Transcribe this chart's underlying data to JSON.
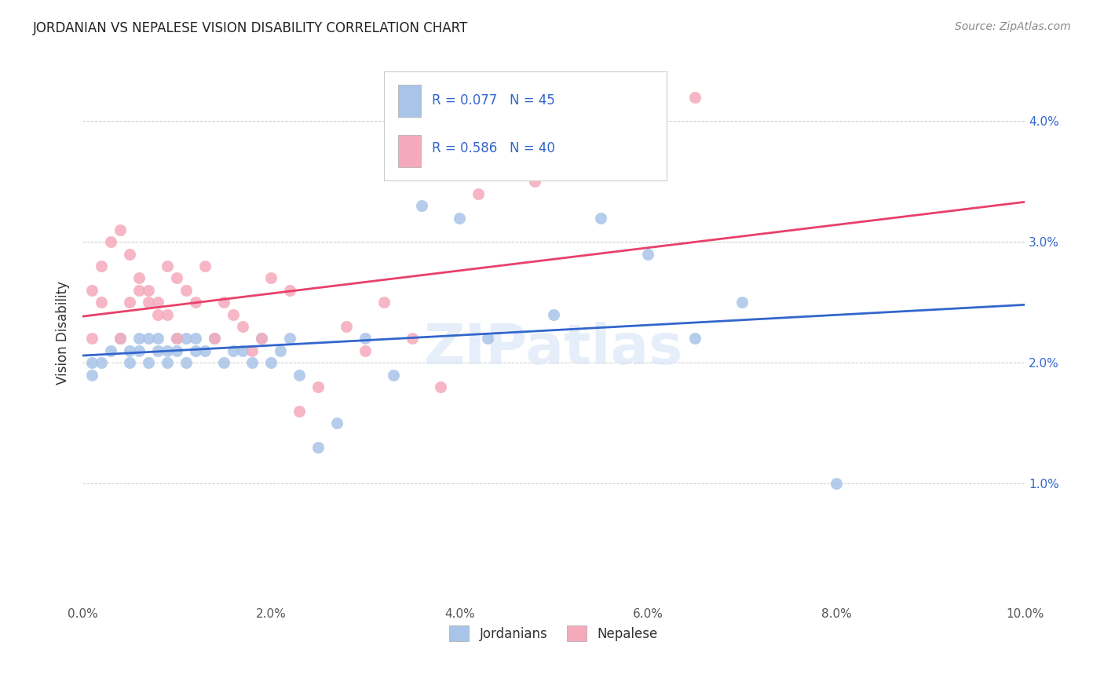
{
  "title": "JORDANIAN VS NEPALESE VISION DISABILITY CORRELATION CHART",
  "source": "Source: ZipAtlas.com",
  "ylabel": "Vision Disability",
  "xlim": [
    0.0,
    0.1
  ],
  "ylim": [
    0.0,
    0.045
  ],
  "x_ticks": [
    0.0,
    0.02,
    0.04,
    0.06,
    0.08,
    0.1
  ],
  "y_ticks": [
    0.0,
    0.01,
    0.02,
    0.03,
    0.04
  ],
  "jordanian_color": "#a8c4e8",
  "nepalese_color": "#f5aabb",
  "jordanian_line_color": "#3366cc",
  "nepalese_line_color": "#e8406a",
  "legend_R_jordanian": "R = 0.077",
  "legend_N_jordanian": "N = 45",
  "legend_R_nepalese": "R = 0.586",
  "legend_N_nepalese": "N = 40",
  "watermark": "ZIPatlas",
  "jordanian_x": [
    0.001,
    0.001,
    0.002,
    0.003,
    0.004,
    0.005,
    0.005,
    0.006,
    0.006,
    0.007,
    0.007,
    0.008,
    0.008,
    0.009,
    0.009,
    0.01,
    0.01,
    0.011,
    0.011,
    0.012,
    0.012,
    0.013,
    0.014,
    0.015,
    0.016,
    0.017,
    0.018,
    0.019,
    0.02,
    0.021,
    0.022,
    0.023,
    0.025,
    0.027,
    0.03,
    0.033,
    0.036,
    0.04,
    0.043,
    0.05,
    0.055,
    0.06,
    0.065,
    0.07,
    0.08
  ],
  "jordanian_y": [
    0.02,
    0.019,
    0.02,
    0.021,
    0.022,
    0.021,
    0.02,
    0.022,
    0.021,
    0.022,
    0.02,
    0.021,
    0.022,
    0.021,
    0.02,
    0.022,
    0.021,
    0.022,
    0.02,
    0.021,
    0.022,
    0.021,
    0.022,
    0.02,
    0.021,
    0.021,
    0.02,
    0.022,
    0.02,
    0.021,
    0.022,
    0.019,
    0.013,
    0.015,
    0.022,
    0.019,
    0.033,
    0.032,
    0.022,
    0.024,
    0.032,
    0.029,
    0.022,
    0.025,
    0.01
  ],
  "nepalese_x": [
    0.001,
    0.001,
    0.002,
    0.002,
    0.003,
    0.004,
    0.004,
    0.005,
    0.005,
    0.006,
    0.006,
    0.007,
    0.007,
    0.008,
    0.008,
    0.009,
    0.009,
    0.01,
    0.01,
    0.011,
    0.012,
    0.013,
    0.014,
    0.015,
    0.016,
    0.017,
    0.018,
    0.019,
    0.02,
    0.022,
    0.023,
    0.025,
    0.028,
    0.03,
    0.032,
    0.035,
    0.038,
    0.042,
    0.048,
    0.065
  ],
  "nepalese_y": [
    0.022,
    0.026,
    0.025,
    0.028,
    0.03,
    0.031,
    0.022,
    0.029,
    0.025,
    0.027,
    0.026,
    0.025,
    0.026,
    0.024,
    0.025,
    0.028,
    0.024,
    0.027,
    0.022,
    0.026,
    0.025,
    0.028,
    0.022,
    0.025,
    0.024,
    0.023,
    0.021,
    0.022,
    0.027,
    0.026,
    0.016,
    0.018,
    0.023,
    0.021,
    0.025,
    0.022,
    0.018,
    0.034,
    0.035,
    0.042
  ]
}
